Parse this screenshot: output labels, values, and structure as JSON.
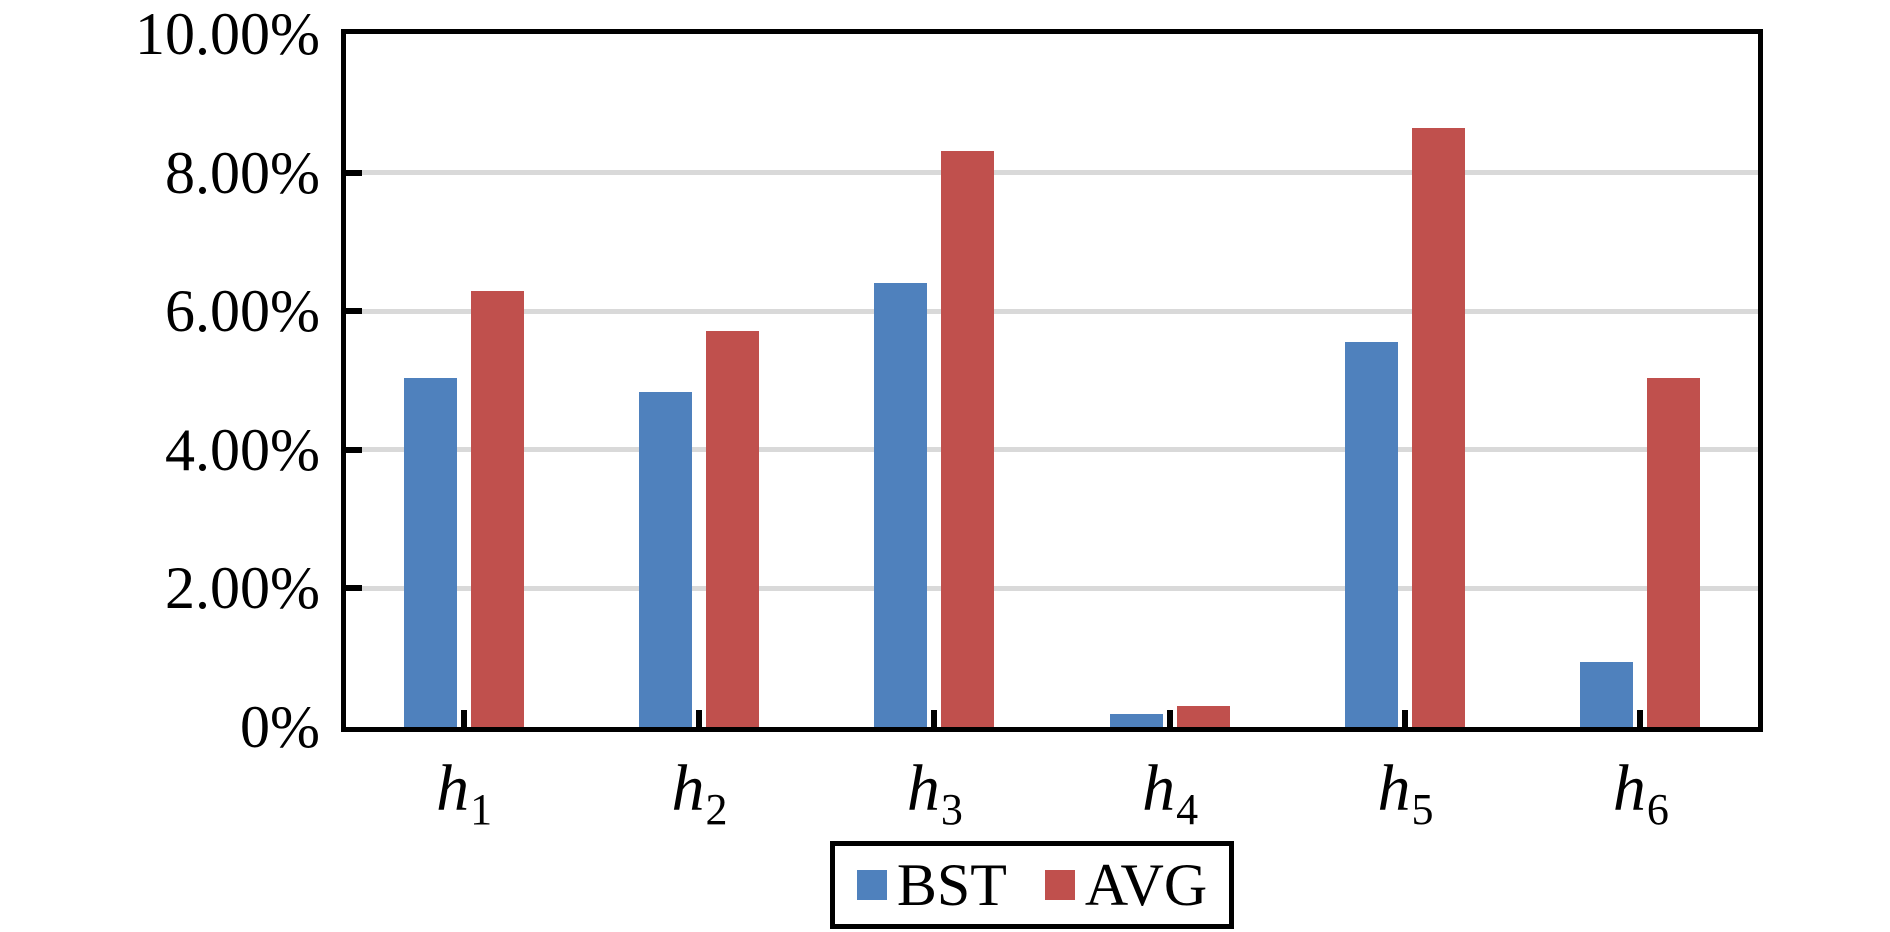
{
  "chart_data": {
    "type": "bar",
    "title": "",
    "xlabel": "",
    "ylabel": "",
    "categories": [
      {
        "base": "h",
        "sub": "1"
      },
      {
        "base": "h",
        "sub": "2"
      },
      {
        "base": "h",
        "sub": "3"
      },
      {
        "base": "h",
        "sub": "4"
      },
      {
        "base": "h",
        "sub": "5"
      },
      {
        "base": "h",
        "sub": "6"
      }
    ],
    "series": [
      {
        "name": "BST",
        "color": "#4F81BD",
        "values": [
          5.04,
          4.84,
          6.41,
          0.19,
          5.55,
          0.94
        ]
      },
      {
        "name": "AVG",
        "color": "#C0504D",
        "values": [
          6.29,
          5.71,
          8.31,
          0.3,
          8.65,
          5.04
        ]
      }
    ],
    "ylim": [
      0,
      10
    ],
    "y_ticks": [
      {
        "value": 0,
        "label": "0%"
      },
      {
        "value": 2,
        "label": "2.00%"
      },
      {
        "value": 4,
        "label": "4.00%"
      },
      {
        "value": 6,
        "label": "6.00%"
      },
      {
        "value": 8,
        "label": "8.00%"
      },
      {
        "value": 10,
        "label": "10.00%"
      }
    ],
    "grid": "horizontal",
    "gridline_values": [
      2,
      4,
      6,
      8
    ],
    "legend_position": "bottom",
    "legend_entries": [
      "BST",
      "AVG"
    ]
  },
  "colors": {
    "axis": "#000000",
    "gridline": "#D9D9D9",
    "background": "#FFFFFF",
    "series_bst": "#4F81BD",
    "series_avg": "#C0504D"
  }
}
